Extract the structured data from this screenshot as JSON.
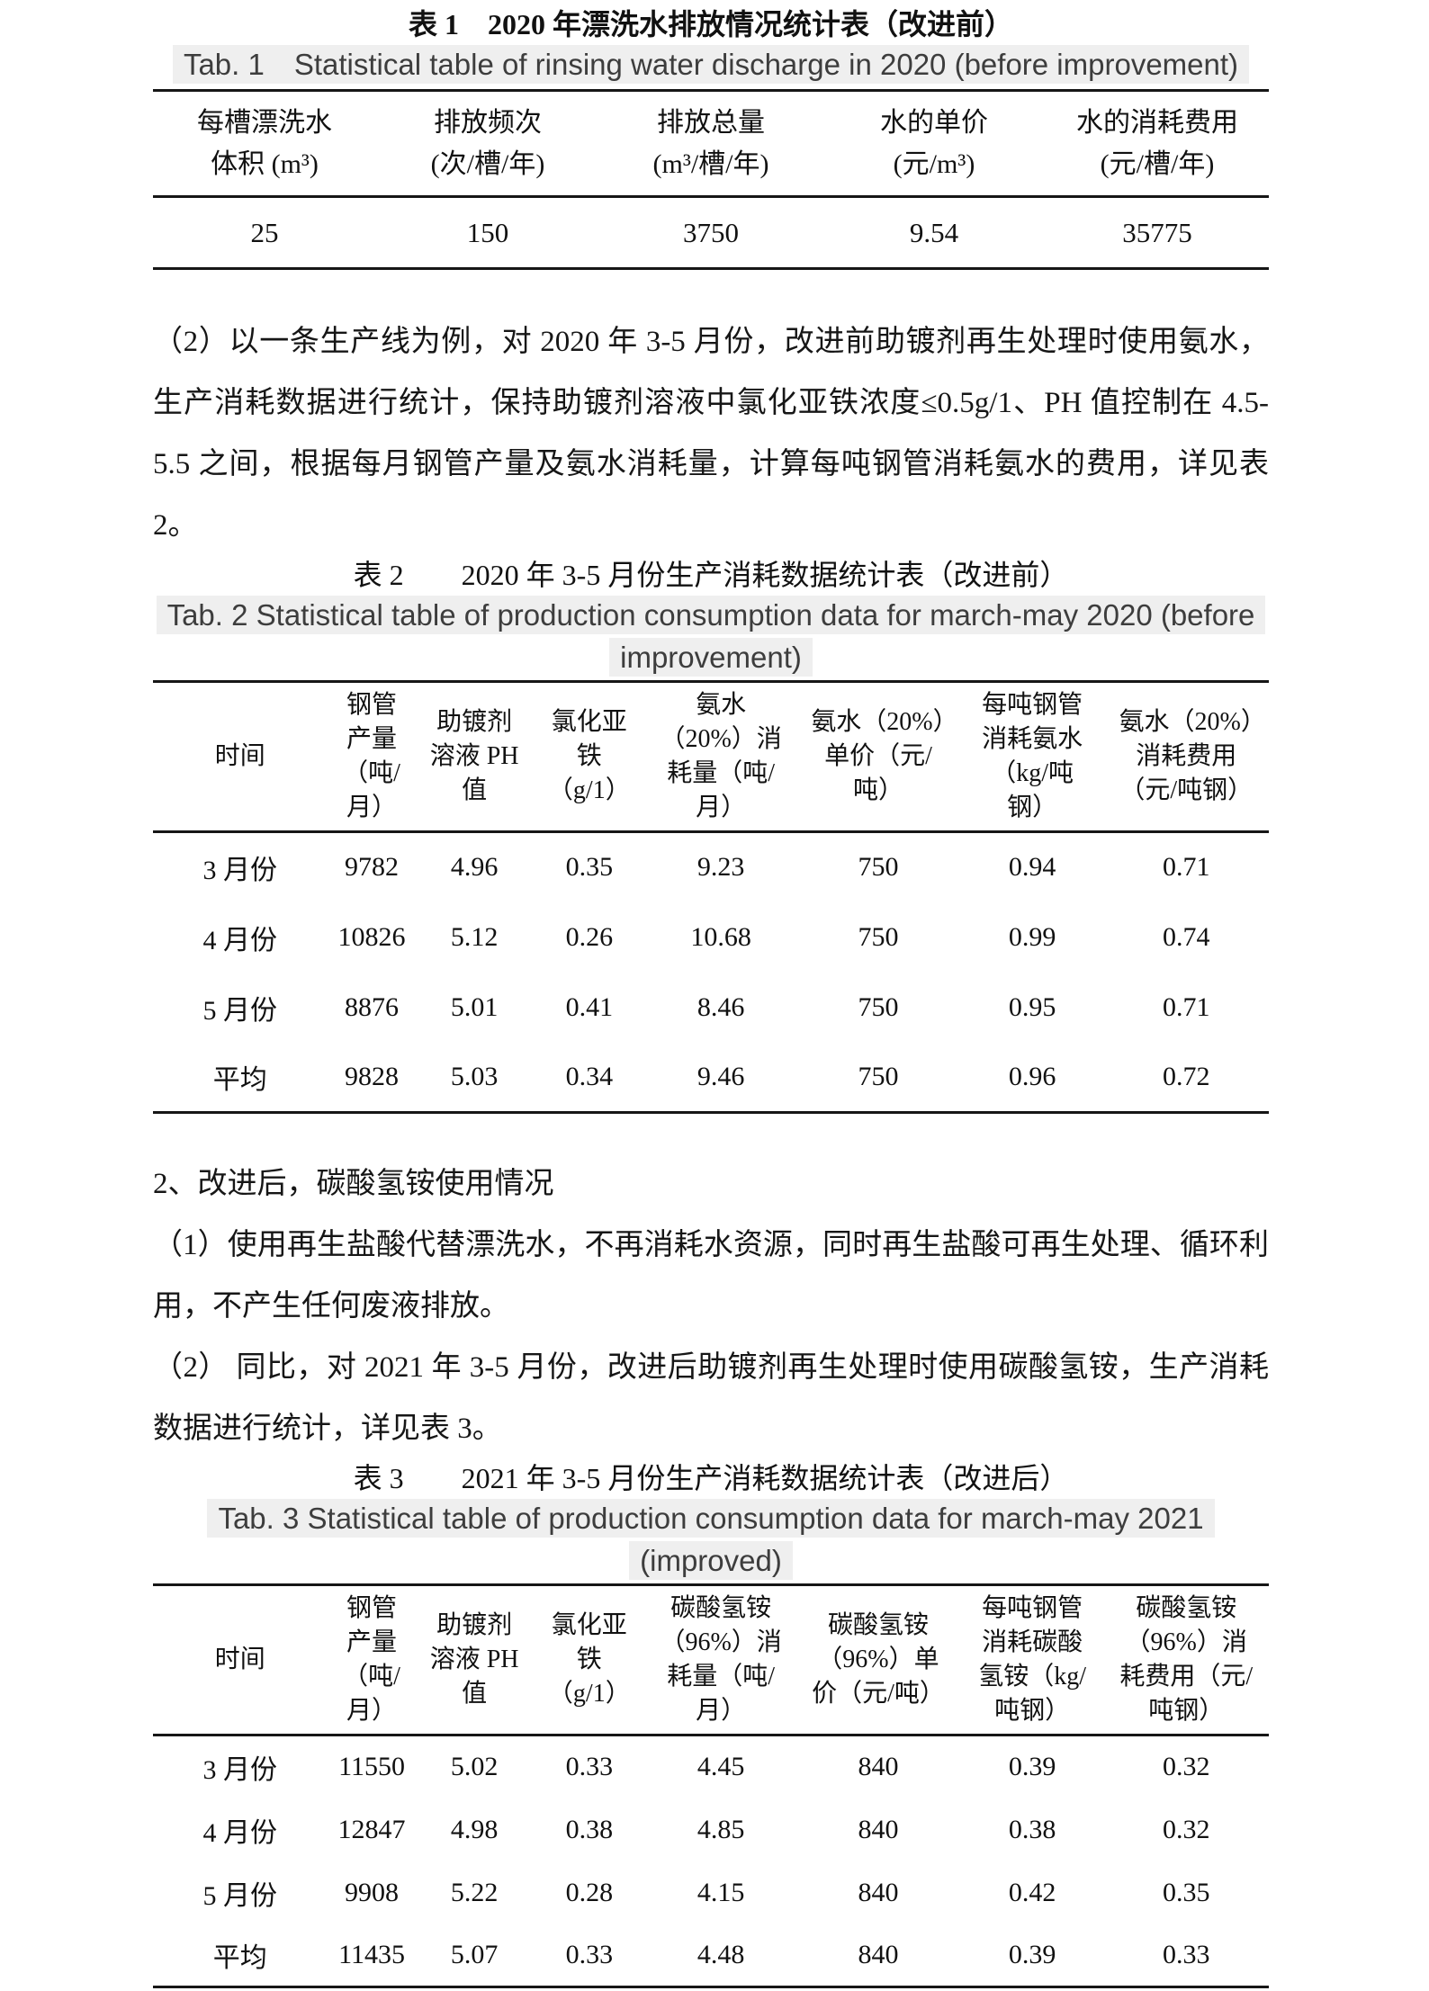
{
  "page": {
    "background": "#ffffff",
    "text_color": "#1a1a1a",
    "caption_highlight_color": "#efefef",
    "rule_color": "#161616"
  },
  "table1": {
    "caption_zh": "表 1　2020 年漂洗水排放情况统计表（改进前）",
    "caption_en": "Tab. 1　Statistical table of rinsing water discharge in 2020 (before improvement)",
    "headers": [
      "每槽漂洗水\n体积 (m³)",
      "排放频次\n(次/槽/年)",
      "排放总量\n(m³/槽/年)",
      "水的单价\n(元/m³)",
      "水的消耗费用\n(元/槽/年)"
    ],
    "rows": [
      [
        "25",
        "150",
        "3750",
        "9.54",
        "35775"
      ]
    ]
  },
  "para1": "（2）以一条生产线为例，对 2020 年 3-5 月份，改进前助镀剂再生处理时使用氨水，生产消耗数据进行统计，保持助镀剂溶液中氯化亚铁浓度≤0.5g/1、PH 值控制在 4.5-5.5 之间，根据每月钢管产量及氨水消耗量，计算每吨钢管消耗氨水的费用，详见表 2。",
  "table2": {
    "caption_zh": "表 2　　2020 年 3-5 月份生产消耗数据统计表（改进前）",
    "caption_en_line1": "Tab. 2 Statistical table of production consumption data for march-may 2020 (before",
    "caption_en_line2": "improvement)",
    "headers": [
      "时间",
      "钢管产量（吨/月）",
      "助镀剂溶液 PH 值",
      "氯化亚铁（g/1）",
      "氨水（20%）消耗量（吨/月）",
      "氨水（20%）单价（元/吨）",
      "每吨钢管消耗氨水（kg/吨钢）",
      "氨水（20%）消耗费用（元/吨钢）"
    ],
    "rows": [
      [
        "3 月份",
        "9782",
        "4.96",
        "0.35",
        "9.23",
        "750",
        "0.94",
        "0.71"
      ],
      [
        "4 月份",
        "10826",
        "5.12",
        "0.26",
        "10.68",
        "750",
        "0.99",
        "0.74"
      ],
      [
        "5 月份",
        "8876",
        "5.01",
        "0.41",
        "8.46",
        "750",
        "0.95",
        "0.71"
      ],
      [
        "平均",
        "9828",
        "5.03",
        "0.34",
        "9.46",
        "750",
        "0.96",
        "0.72"
      ]
    ]
  },
  "section2": {
    "heading": "2、改进后，碳酸氢铵使用情况",
    "para1": "（1）使用再生盐酸代替漂洗水，不再消耗水资源，同时再生盐酸可再生处理、循环利用，不产生任何废液排放。",
    "para2": "（2） 同比，对 2021 年 3-5 月份，改进后助镀剂再生处理时使用碳酸氢铵，生产消耗数据进行统计，详见表 3。"
  },
  "table3": {
    "caption_zh": "表 3　　2021 年 3-5 月份生产消耗数据统计表（改进后）",
    "caption_en_line1": "Tab. 3  Statistical table of production consumption data for march-may 2021",
    "caption_en_line2": "(improved)",
    "headers": [
      "时间",
      "钢管产量（吨/月）",
      "助镀剂溶液 PH 值",
      "氯化亚铁（g/1）",
      "碳酸氢铵（96%）消耗量（吨/月）",
      "碳酸氢铵（96%）单价（元/吨）",
      "每吨钢管消耗碳酸氢铵（kg/吨钢）",
      "碳酸氢铵（96%）消耗费用（元/吨钢）"
    ],
    "rows": [
      [
        "3 月份",
        "11550",
        "5.02",
        "0.33",
        "4.45",
        "840",
        "0.39",
        "0.32"
      ],
      [
        "4 月份",
        "12847",
        "4.98",
        "0.38",
        "4.85",
        "840",
        "0.38",
        "0.32"
      ],
      [
        "5 月份",
        "9908",
        "5.22",
        "0.28",
        "4.15",
        "840",
        "0.42",
        "0.35"
      ],
      [
        "平均",
        "11435",
        "5.07",
        "0.33",
        "4.48",
        "840",
        "0.39",
        "0.33"
      ]
    ]
  }
}
